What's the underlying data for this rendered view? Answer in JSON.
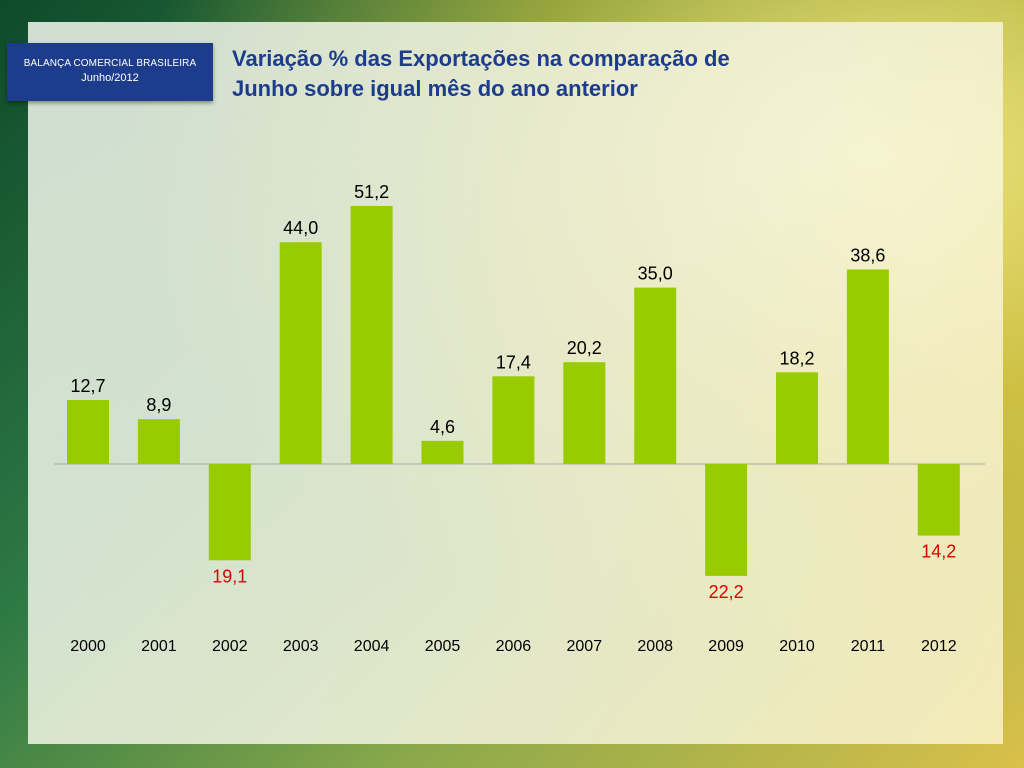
{
  "badge": {
    "line1": "BALANÇA COMERCIAL BRASILEIRA",
    "line2": "Junho/2012"
  },
  "title": {
    "line1": "Variação % das Exportações na comparação de",
    "line2": "Junho sobre igual mês do ano anterior"
  },
  "colors": {
    "bar": "#99cc00",
    "positive_label": "#000000",
    "negative_label": "#e00000",
    "title": "#1d3d8c",
    "badge": "#1d3d8c"
  },
  "chart_data": {
    "type": "bar",
    "categories": [
      "2000",
      "2001",
      "2002",
      "2003",
      "2004",
      "2005",
      "2006",
      "2007",
      "2008",
      "2009",
      "2010",
      "2011",
      "2012"
    ],
    "values": [
      12.7,
      8.9,
      -19.1,
      44.0,
      51.2,
      4.6,
      17.4,
      20.2,
      35.0,
      -22.2,
      18.2,
      38.6,
      -14.2
    ],
    "labels": [
      "12,7",
      "8,9",
      "19,1",
      "44,0",
      "51,2",
      "4,6",
      "17,4",
      "20,2",
      "35,0",
      "22,2",
      "18,2",
      "38,6",
      "14,2"
    ],
    "title": "Variação % das Exportações na comparação de Junho sobre igual mês do ano anterior",
    "grid": false,
    "legend": "none"
  }
}
